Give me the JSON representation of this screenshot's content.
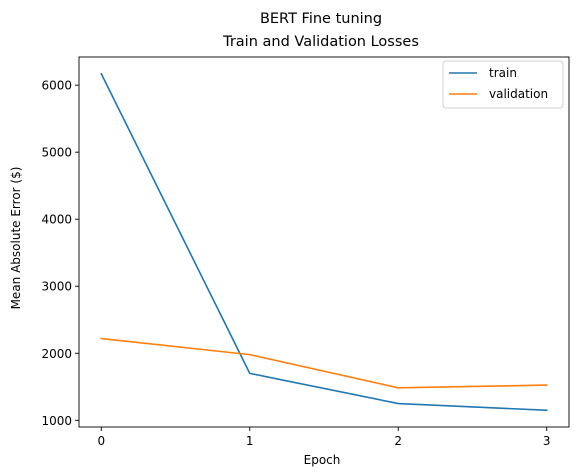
{
  "chart_data": {
    "type": "line",
    "title": [
      "BERT Fine tuning",
      "Train and Validation Losses"
    ],
    "xlabel": "Epoch",
    "ylabel": "Mean Absolute Error ($)",
    "x": [
      0,
      1,
      2,
      3
    ],
    "xticks": [
      "0",
      "1",
      "2",
      "3"
    ],
    "xlim": [
      -0.15,
      3.15
    ],
    "yticks": [
      "1000",
      "2000",
      "3000",
      "4000",
      "5000",
      "6000"
    ],
    "ylim": [
      900,
      6420
    ],
    "grid": false,
    "legend_position": "top-right",
    "series": [
      {
        "name": "train",
        "color": "#1f77b4",
        "values": [
          6170,
          1700,
          1250,
          1150
        ]
      },
      {
        "name": "validation",
        "color": "#ff7f0e",
        "values": [
          2220,
          1980,
          1485,
          1525
        ]
      }
    ]
  }
}
